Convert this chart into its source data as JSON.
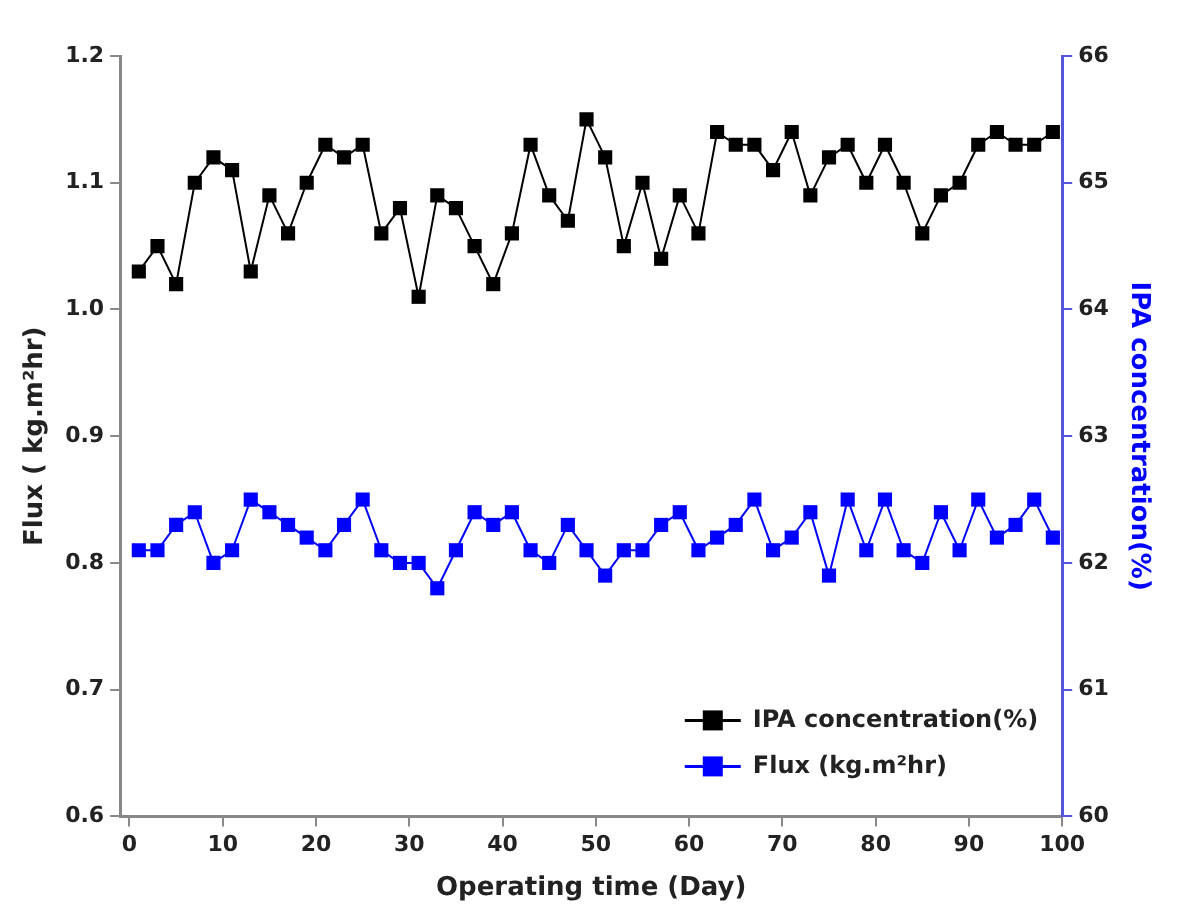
{
  "chart_data": {
    "type": "line",
    "xlabel": "Operating time (Day)",
    "ylabel": "Flux ( kg.m²hr)",
    "y2label": "IPA concentration(%)",
    "x": [
      1,
      3,
      5,
      7,
      9,
      11,
      13,
      15,
      17,
      19,
      21,
      23,
      25,
      27,
      29,
      31,
      33,
      35,
      37,
      39,
      41,
      43,
      45,
      47,
      49,
      51,
      53,
      55,
      57,
      59,
      61,
      63,
      65,
      67,
      69,
      71,
      73,
      75,
      77,
      79,
      81,
      83,
      85,
      87,
      89,
      91,
      93,
      95,
      97,
      99
    ],
    "series": [
      {
        "name": "IPA concentration(%)",
        "color": "#000000",
        "axis": "y2",
        "values": [
          64.3,
          64.5,
          64.2,
          65.0,
          65.2,
          65.1,
          64.3,
          64.9,
          64.6,
          65.0,
          65.3,
          65.2,
          65.3,
          64.6,
          64.8,
          64.1,
          64.9,
          64.8,
          64.5,
          64.2,
          64.6,
          65.3,
          64.9,
          64.7,
          65.5,
          65.2,
          64.5,
          65.0,
          64.4,
          64.9,
          64.6,
          65.4,
          65.3,
          65.3,
          65.1,
          65.4,
          64.9,
          65.2,
          65.3,
          65.0,
          65.3,
          65.0,
          64.6,
          64.9,
          65.0,
          65.3,
          65.4,
          65.3,
          65.3,
          65.4
        ]
      },
      {
        "name": "Flux (kg.m²hr)",
        "color": "#0000ff",
        "values": [
          0.81,
          0.81,
          0.83,
          0.84,
          0.8,
          0.81,
          0.85,
          0.84,
          0.83,
          0.82,
          0.81,
          0.83,
          0.85,
          0.81,
          0.8,
          0.8,
          0.78,
          0.81,
          0.84,
          0.83,
          0.84,
          0.81,
          0.8,
          0.83,
          0.81,
          0.79,
          0.81,
          0.81,
          0.83,
          0.84,
          0.81,
          0.82,
          0.83,
          0.85,
          0.81,
          0.82,
          0.84,
          0.79,
          0.85,
          0.81,
          0.85,
          0.81,
          0.8,
          0.84,
          0.81,
          0.85,
          0.82,
          0.83,
          0.85,
          0.82
        ]
      }
    ],
    "xlim": [
      -1,
      100
    ],
    "xticks": [
      0,
      10,
      20,
      30,
      40,
      50,
      60,
      70,
      80,
      90,
      100
    ],
    "ylim": [
      0.6,
      1.2
    ],
    "yticks": [
      0.6,
      0.7,
      0.8,
      0.9,
      {
        "value": 1,
        "label": "1.0"
      },
      1.1,
      1.2
    ],
    "y2lim": [
      60,
      66
    ],
    "y2ticks": [
      60,
      61,
      62,
      63,
      64,
      65,
      66
    ],
    "grid": false,
    "legend": "bottom right",
    "marker": "square",
    "line_style": "solid"
  }
}
